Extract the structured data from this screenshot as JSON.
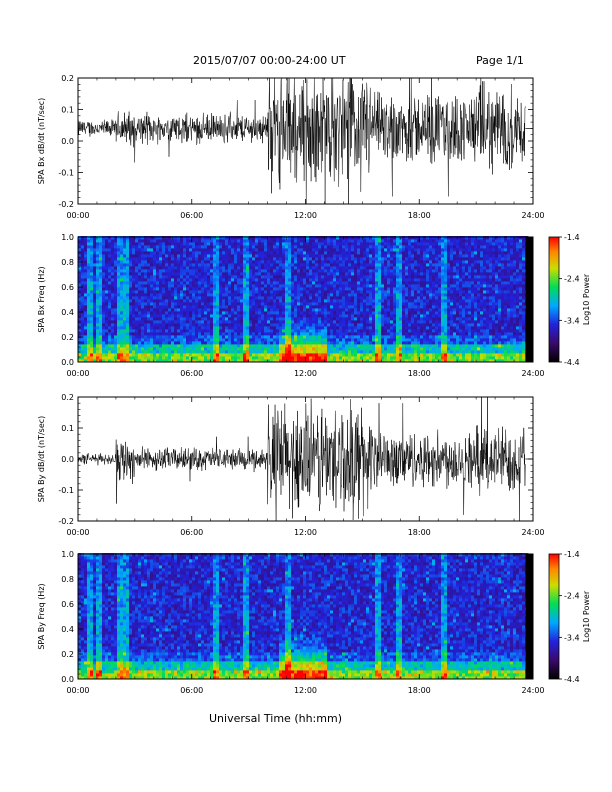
{
  "header": {
    "title": "2015/07/07  00:00-24:00 UT",
    "page": "Page 1/1"
  },
  "chart_data": [
    {
      "type": "line",
      "ylabel": "SPA Bx dB/dt (nT/sec)",
      "xlim": [
        0,
        24
      ],
      "ylim": [
        -0.2,
        0.2
      ],
      "xticks": [
        "00:00",
        "06:00",
        "12:00",
        "18:00",
        "24:00"
      ],
      "yticks": [
        "-0.2",
        "-0.1",
        "0.0",
        "0.1",
        "0.2"
      ],
      "baseline": 0.04,
      "data_end_hour": 23.6,
      "activity": [
        {
          "start": 0.0,
          "end": 2.0,
          "amplitude": 0.03
        },
        {
          "start": 2.0,
          "end": 3.0,
          "amplitude": 0.06
        },
        {
          "start": 3.0,
          "end": 10.0,
          "amplitude": 0.05
        },
        {
          "start": 10.0,
          "end": 15.5,
          "amplitude": 0.2
        },
        {
          "start": 15.5,
          "end": 21.0,
          "amplitude": 0.12
        },
        {
          "start": 21.0,
          "end": 23.6,
          "amplitude": 0.15
        }
      ]
    },
    {
      "type": "heatmap",
      "ylabel": "SPA Bx Freq (Hz)",
      "xlim": [
        0,
        24
      ],
      "ylim": [
        0,
        1.0
      ],
      "xticks": [
        "00:00",
        "06:00",
        "12:00",
        "18:00",
        "24:00"
      ],
      "yticks": [
        "0.0",
        "0.2",
        "0.4",
        "0.6",
        "0.8",
        "1.0"
      ],
      "colorbar": {
        "label": "Log10 Power",
        "range": [
          -4.4,
          -1.4
        ],
        "ticks": [
          "-1.4",
          "-2.4",
          "-3.4",
          "-4.4"
        ]
      },
      "data_end_hour": 23.6,
      "enhanced_interval": [
        10.5,
        13.0
      ],
      "bright_streak_hours": [
        0.6,
        1.1,
        2.2,
        2.5,
        7.2,
        8.8,
        11.0,
        15.8,
        16.8,
        19.3
      ]
    },
    {
      "type": "line",
      "ylabel": "SPA By dB/dt (nT/sec)",
      "xlim": [
        0,
        24
      ],
      "ylim": [
        -0.2,
        0.2
      ],
      "xticks": [
        "00:00",
        "06:00",
        "12:00",
        "18:00",
        "24:00"
      ],
      "yticks": [
        "-0.2",
        "-0.1",
        "0.0",
        "0.1",
        "0.2"
      ],
      "baseline": 0.0,
      "data_end_hour": 23.6,
      "activity": [
        {
          "start": 0.0,
          "end": 2.0,
          "amplitude": 0.02
        },
        {
          "start": 2.0,
          "end": 3.0,
          "amplitude": 0.08
        },
        {
          "start": 3.0,
          "end": 10.0,
          "amplitude": 0.04
        },
        {
          "start": 10.0,
          "end": 15.5,
          "amplitude": 0.2
        },
        {
          "start": 15.5,
          "end": 21.0,
          "amplitude": 0.1
        },
        {
          "start": 21.0,
          "end": 23.6,
          "amplitude": 0.12
        }
      ]
    },
    {
      "type": "heatmap",
      "ylabel": "SPA By Freq (Hz)",
      "xlim": [
        0,
        24
      ],
      "ylim": [
        0,
        1.0
      ],
      "xticks": [
        "00:00",
        "06:00",
        "12:00",
        "18:00",
        "24:00"
      ],
      "yticks": [
        "0.0",
        "0.2",
        "0.4",
        "0.6",
        "0.8",
        "1.0"
      ],
      "colorbar": {
        "label": "Log10 Power",
        "range": [
          -4.4,
          -1.4
        ],
        "ticks": [
          "-1.4",
          "-2.4",
          "-3.4",
          "-4.4"
        ]
      },
      "data_end_hour": 23.6,
      "enhanced_interval": [
        10.5,
        13.0
      ],
      "bright_streak_hours": [
        0.6,
        1.1,
        2.2,
        2.5,
        7.2,
        8.8,
        11.0,
        15.8,
        16.8,
        19.3
      ]
    }
  ],
  "xlabel": "Universal Time (hh:mm)"
}
